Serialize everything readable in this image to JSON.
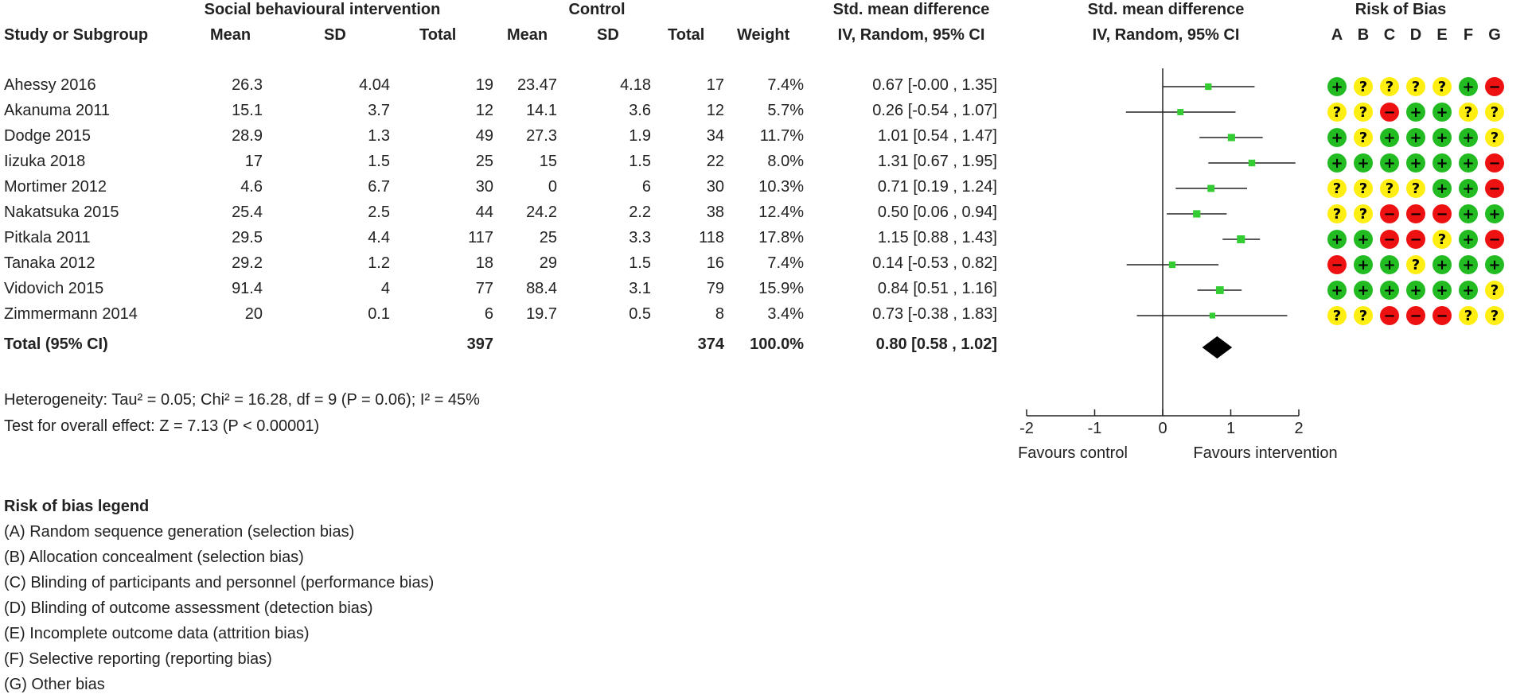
{
  "header": {
    "group_intervention": "Social behavioural intervention",
    "group_control": "Control",
    "smd_title_left": "Std. mean difference",
    "smd_sub_left": "IV, Random, 95% CI",
    "smd_title_right": "Std. mean difference",
    "smd_sub_right": "IV, Random, 95% CI",
    "rob_title": "Risk of Bias",
    "col_study": "Study or Subgroup",
    "col_mean": "Mean",
    "col_sd": "SD",
    "col_total": "Total",
    "col_mean2": "Mean",
    "col_sd2": "SD",
    "col_total2": "Total",
    "col_weight": "Weight",
    "rob_letters": [
      "A",
      "B",
      "C",
      "D",
      "E",
      "F",
      "G"
    ]
  },
  "studies": [
    {
      "name": "Ahessy 2016",
      "mean": "26.3",
      "sd": "4.04",
      "total": "19",
      "cmean": "23.47",
      "csd": "4.18",
      "ctotal": "17",
      "weight": "7.4%",
      "ci_text": "0.67 [-0.00 , 1.35]"
    },
    {
      "name": "Akanuma 2011",
      "mean": "15.1",
      "sd": "3.7",
      "total": "12",
      "cmean": "14.1",
      "csd": "3.6",
      "ctotal": "12",
      "weight": "5.7%",
      "ci_text": "0.26 [-0.54 , 1.07]"
    },
    {
      "name": "Dodge 2015",
      "mean": "28.9",
      "sd": "1.3",
      "total": "49",
      "cmean": "27.3",
      "csd": "1.9",
      "ctotal": "34",
      "weight": "11.7%",
      "ci_text": "1.01 [0.54 , 1.47]"
    },
    {
      "name": "Iizuka 2018",
      "mean": "17",
      "sd": "1.5",
      "total": "25",
      "cmean": "15",
      "csd": "1.5",
      "ctotal": "22",
      "weight": "8.0%",
      "ci_text": "1.31 [0.67 , 1.95]"
    },
    {
      "name": "Mortimer 2012",
      "mean": "4.6",
      "sd": "6.7",
      "total": "30",
      "cmean": "0",
      "csd": "6",
      "ctotal": "30",
      "weight": "10.3%",
      "ci_text": "0.71 [0.19 , 1.24]"
    },
    {
      "name": "Nakatsuka 2015",
      "mean": "25.4",
      "sd": "2.5",
      "total": "44",
      "cmean": "24.2",
      "csd": "2.2",
      "ctotal": "38",
      "weight": "12.4%",
      "ci_text": "0.50 [0.06 , 0.94]"
    },
    {
      "name": "Pitkala 2011",
      "mean": "29.5",
      "sd": "4.4",
      "total": "117",
      "cmean": "25",
      "csd": "3.3",
      "ctotal": "118",
      "weight": "17.8%",
      "ci_text": "1.15 [0.88 , 1.43]"
    },
    {
      "name": "Tanaka 2012",
      "mean": "29.2",
      "sd": "1.2",
      "total": "18",
      "cmean": "29",
      "csd": "1.5",
      "ctotal": "16",
      "weight": "7.4%",
      "ci_text": "0.14 [-0.53 , 0.82]"
    },
    {
      "name": "Vidovich 2015",
      "mean": "91.4",
      "sd": "4",
      "total": "77",
      "cmean": "88.4",
      "csd": "3.1",
      "ctotal": "79",
      "weight": "15.9%",
      "ci_text": "0.84 [0.51 , 1.16]"
    },
    {
      "name": "Zimmermann 2014",
      "mean": "20",
      "sd": "0.1",
      "total": "6",
      "cmean": "19.7",
      "csd": "0.5",
      "ctotal": "8",
      "weight": "3.4%",
      "ci_text": "0.73 [-0.38 , 1.83]"
    }
  ],
  "total_row": {
    "label": "Total (95% CI)",
    "total": "397",
    "ctotal": "374",
    "weight": "100.0%",
    "ci_text": "0.80 [0.58 , 1.02]"
  },
  "heterogeneity": "Heterogeneity: Tau² = 0.05; Chi² = 16.28, df = 9 (P = 0.06); I² = 45%",
  "overall_effect": "Test for overall effect: Z = 7.13 (P < 0.00001)",
  "axis": {
    "favours_left": "Favours control",
    "favours_right": "Favours intervention"
  },
  "legend": {
    "title": "Risk of bias legend",
    "items": [
      "(A) Random sequence generation (selection bias)",
      "(B) Allocation concealment (selection bias)",
      "(C) Blinding of participants and personnel (performance bias)",
      "(D) Blinding of outcome assessment (detection bias)",
      "(E) Incomplete outcome data (attrition bias)",
      "(F) Selective reporting (reporting bias)",
      "(G) Other bias"
    ]
  },
  "colors": {
    "low": "#22bb22",
    "unclear": "#ffee11",
    "high": "#ee1111",
    "marker": "#33cc33",
    "line": "#222222"
  },
  "chart_data": {
    "type": "scatter",
    "subtype": "forest",
    "xlim": [
      -2,
      2
    ],
    "xticks": [
      -2,
      -1,
      0,
      1,
      2
    ],
    "studies": [
      {
        "name": "Ahessy 2016",
        "est": 0.67,
        "lo": -0.0,
        "hi": 1.35,
        "weight": 7.4
      },
      {
        "name": "Akanuma 2011",
        "est": 0.26,
        "lo": -0.54,
        "hi": 1.07,
        "weight": 5.7
      },
      {
        "name": "Dodge 2015",
        "est": 1.01,
        "lo": 0.54,
        "hi": 1.47,
        "weight": 11.7
      },
      {
        "name": "Iizuka 2018",
        "est": 1.31,
        "lo": 0.67,
        "hi": 1.95,
        "weight": 8.0
      },
      {
        "name": "Mortimer 2012",
        "est": 0.71,
        "lo": 0.19,
        "hi": 1.24,
        "weight": 10.3
      },
      {
        "name": "Nakatsuka 2015",
        "est": 0.5,
        "lo": 0.06,
        "hi": 0.94,
        "weight": 12.4
      },
      {
        "name": "Pitkala 2011",
        "est": 1.15,
        "lo": 0.88,
        "hi": 1.43,
        "weight": 17.8
      },
      {
        "name": "Tanaka 2012",
        "est": 0.14,
        "lo": -0.53,
        "hi": 0.82,
        "weight": 7.4
      },
      {
        "name": "Vidovich 2015",
        "est": 0.84,
        "lo": 0.51,
        "hi": 1.16,
        "weight": 15.9
      },
      {
        "name": "Zimmermann 2014",
        "est": 0.73,
        "lo": -0.38,
        "hi": 1.83,
        "weight": 3.4
      }
    ],
    "pooled": {
      "est": 0.8,
      "lo": 0.58,
      "hi": 1.02
    },
    "risk_of_bias": [
      [
        "low",
        "unclear",
        "unclear",
        "unclear",
        "unclear",
        "low",
        "high"
      ],
      [
        "unclear",
        "unclear",
        "high",
        "low",
        "low",
        "unclear",
        "unclear"
      ],
      [
        "low",
        "unclear",
        "low",
        "low",
        "low",
        "low",
        "unclear"
      ],
      [
        "low",
        "low",
        "low",
        "low",
        "low",
        "low",
        "high"
      ],
      [
        "unclear",
        "unclear",
        "unclear",
        "unclear",
        "low",
        "low",
        "high"
      ],
      [
        "unclear",
        "unclear",
        "high",
        "high",
        "high",
        "low",
        "low"
      ],
      [
        "low",
        "low",
        "high",
        "high",
        "unclear",
        "low",
        "high"
      ],
      [
        "high",
        "low",
        "low",
        "unclear",
        "low",
        "low",
        "low"
      ],
      [
        "low",
        "low",
        "low",
        "low",
        "low",
        "low",
        "unclear"
      ],
      [
        "unclear",
        "unclear",
        "high",
        "high",
        "high",
        "unclear",
        "unclear"
      ]
    ],
    "rob_symbols": {
      "low": "+",
      "unclear": "?",
      "high": "−"
    }
  }
}
